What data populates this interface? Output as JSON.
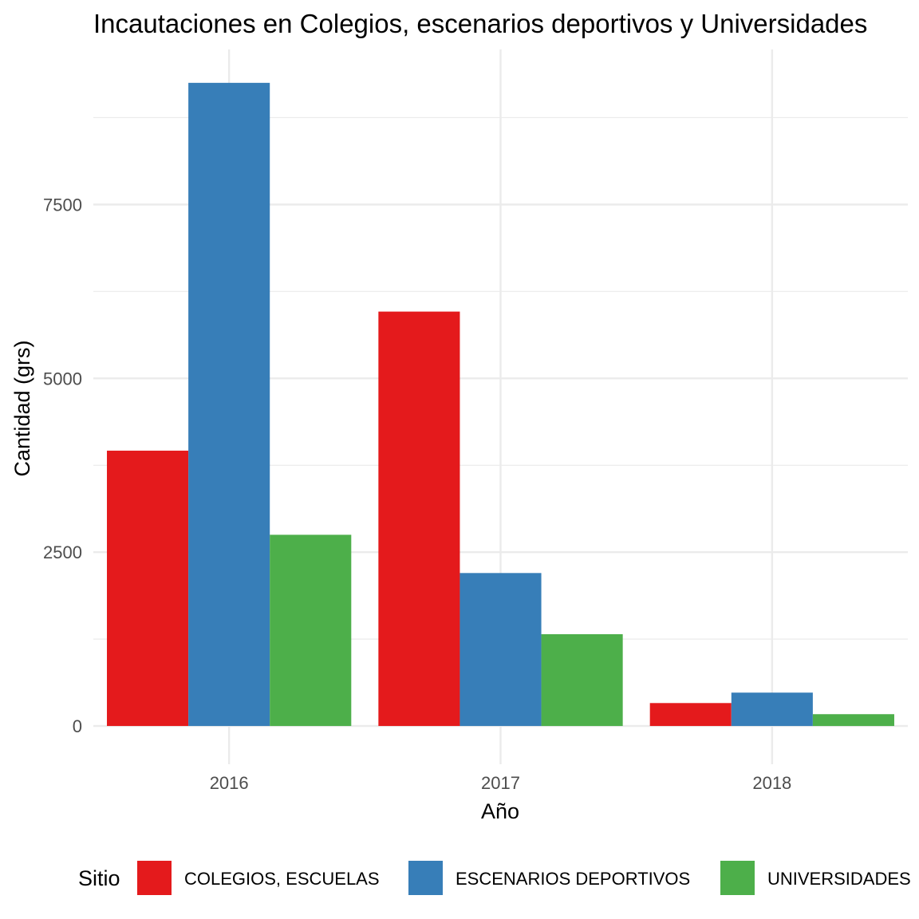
{
  "chart_data": {
    "type": "bar",
    "title": "Incautaciones en Colegios, escenarios deportivos y Universidades",
    "xlabel": "Año",
    "ylabel": "Cantidad (grs)",
    "categories": [
      "2016",
      "2017",
      "2018"
    ],
    "series": [
      {
        "name": "COLEGIOS, ESCUELAS",
        "color": "#e41a1c",
        "values": [
          3960,
          5960,
          330
        ]
      },
      {
        "name": "ESCENARIOS DEPORTIVOS",
        "color": "#377eb8",
        "values": [
          9250,
          2200,
          480
        ]
      },
      {
        "name": "UNIVERSIDADES",
        "color": "#4daf4a",
        "values": [
          2750,
          1320,
          170
        ]
      }
    ],
    "ylim": [
      -550,
      9730
    ],
    "yticks": [
      0,
      2500,
      5000,
      7500
    ],
    "yticks_minor": [
      1250,
      3750,
      6250,
      8750
    ],
    "grid": true,
    "legend": {
      "title": "Sitio",
      "position": "bottom"
    }
  }
}
